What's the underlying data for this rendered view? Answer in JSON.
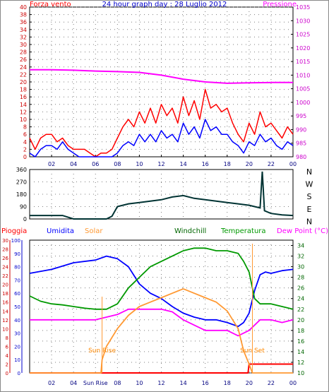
{
  "title": "24 hour graph day : 28 Luglio 2012",
  "colors": {
    "wind": "#ff0000",
    "pressure": "#ff00ff",
    "gust": "#0000ff",
    "direction": "#003333",
    "rain": "#ff0000",
    "humidity": "#0000ff",
    "solar": "#ff9933",
    "windchill": "#006600",
    "temperature": "#009900",
    "dewpoint": "#ff00ff",
    "grid": "#7f7f7f"
  },
  "chart_data": [
    {
      "type": "line",
      "panel": "wind-pressure",
      "title": "24 hour graph day : 28 Luglio 2012",
      "left_axis_label": "Forza vento",
      "right_axis_label": "Pressione",
      "left_ticks": [
        "0",
        "2",
        "4",
        "6",
        "8",
        "10",
        "12",
        "14",
        "16",
        "18",
        "20",
        "22",
        "24",
        "26",
        "28",
        "30",
        "32",
        "34",
        "36",
        "38",
        "40"
      ],
      "right_ticks": [
        "980",
        "985",
        "990",
        "995",
        "1000",
        "1005",
        "1010",
        "1015",
        "1020",
        "1025",
        "1030",
        "1035"
      ],
      "x_ticks": [
        "02",
        "04",
        "06",
        "08",
        "10",
        "12",
        "14",
        "16",
        "18",
        "20",
        "22",
        "00"
      ],
      "ylim_left": [
        0,
        40
      ],
      "ylim_right": [
        980,
        1035
      ],
      "series": [
        {
          "key": "pressure",
          "axis": "right",
          "x": [
            0,
            2,
            4,
            6,
            8,
            10,
            12,
            14,
            16,
            18,
            20,
            22,
            24
          ],
          "values": [
            1012,
            1012,
            1011.8,
            1011.5,
            1011.3,
            1011,
            1010,
            1008.5,
            1007.5,
            1007,
            1007.2,
            1007.3,
            1007.3
          ]
        },
        {
          "key": "wind",
          "axis": "left",
          "x": [
            0,
            0.5,
            1,
            1.5,
            2,
            2.5,
            3,
            3.5,
            4,
            4.5,
            5,
            5.5,
            6,
            6.5,
            7,
            7.5,
            8,
            8.5,
            9,
            9.5,
            10,
            10.5,
            11,
            11.5,
            12,
            12.5,
            13,
            13.5,
            14,
            14.5,
            15,
            15.5,
            16,
            16.5,
            17,
            17.5,
            18,
            18.5,
            19,
            19.5,
            20,
            20.5,
            21,
            21.5,
            22,
            22.5,
            23,
            23.5,
            24
          ],
          "values": [
            5,
            2,
            5,
            6,
            6,
            4,
            5,
            3,
            2,
            2,
            2,
            1,
            0,
            1,
            1,
            2,
            5,
            8,
            10,
            8,
            12,
            9,
            13,
            9,
            14,
            11,
            13,
            9,
            16,
            11,
            15,
            10,
            18,
            13,
            14,
            12,
            13,
            9,
            6,
            4,
            9,
            6,
            12,
            8,
            9,
            7,
            5,
            8,
            6
          ]
        },
        {
          "key": "gust",
          "axis": "left",
          "x": [
            0,
            0.5,
            1,
            1.5,
            2,
            2.5,
            3,
            3.5,
            4,
            4.5,
            5,
            5.5,
            6,
            6.5,
            7,
            7.5,
            8,
            8.5,
            9,
            9.5,
            10,
            10.5,
            11,
            11.5,
            12,
            12.5,
            13,
            13.5,
            14,
            14.5,
            15,
            15.5,
            16,
            16.5,
            17,
            17.5,
            18,
            18.5,
            19,
            19.5,
            20,
            20.5,
            21,
            21.5,
            22,
            22.5,
            23,
            23.5,
            24
          ],
          "values": [
            1,
            0,
            2,
            3,
            3,
            2,
            4,
            2,
            1,
            0,
            0,
            0,
            0,
            0,
            0,
            0,
            1,
            3,
            4,
            3,
            6,
            4,
            6,
            4,
            7,
            5,
            6,
            4,
            9,
            6,
            8,
            5,
            10,
            7,
            8,
            6,
            6,
            4,
            3,
            1,
            4,
            3,
            6,
            4,
            5,
            3,
            2,
            4,
            3
          ]
        }
      ]
    },
    {
      "type": "line",
      "panel": "wind-direction",
      "right_axis_label": "N W S E N",
      "left_ticks": [
        "0",
        "90",
        "180",
        "270",
        "360"
      ],
      "direction_labels": [
        "N",
        "W",
        "S",
        "E",
        "N"
      ],
      "ylim": [
        0,
        360
      ],
      "series": [
        {
          "key": "direction",
          "x": [
            0,
            1,
            2,
            3,
            4,
            5,
            6,
            7,
            7.5,
            8,
            9,
            10,
            11,
            12,
            13,
            14,
            15,
            16,
            17,
            18,
            19,
            20,
            20.5,
            21,
            21.2,
            21.4,
            22,
            23,
            24
          ],
          "values": [
            25,
            25,
            25,
            25,
            0,
            0,
            0,
            0,
            20,
            90,
            110,
            120,
            130,
            140,
            160,
            170,
            150,
            140,
            130,
            120,
            110,
            100,
            90,
            80,
            345,
            60,
            40,
            30,
            25
          ]
        }
      ]
    },
    {
      "type": "line",
      "panel": "temperature-humidity",
      "legend": [
        "Pioggia",
        "Umidita",
        "Solar",
        "Windchill",
        "Temperatura",
        "Dew Point (°C)"
      ],
      "annotations": [
        "Sun Rise",
        "Sun Set"
      ],
      "x_ticks": [
        "02",
        "04",
        "Sun Rise",
        "08",
        "10",
        "12",
        "14",
        "16",
        "18",
        "20",
        "22",
        "00"
      ],
      "rain_ticks": [
        "0",
        "2",
        "4",
        "6",
        "8",
        "10",
        "12",
        "14",
        "16",
        "18",
        "20",
        "22",
        "24",
        "26",
        "28",
        "30"
      ],
      "humidity_ticks": [
        "0",
        "10",
        "20",
        "30",
        "40",
        "50",
        "60",
        "70",
        "80",
        "90",
        "100"
      ],
      "temp_ticks": [
        "10",
        "12",
        "14",
        "16",
        "18",
        "20",
        "22",
        "24",
        "26",
        "28",
        "30",
        "32",
        "34"
      ],
      "ylim_temp": [
        10,
        35
      ],
      "ylim_humidity": [
        0,
        100
      ],
      "series": [
        {
          "key": "humidity",
          "axis": "humidity",
          "x": [
            0,
            2,
            4,
            6,
            7,
            8,
            9,
            10,
            11,
            12,
            13,
            14,
            15,
            16,
            17,
            18,
            19,
            19.5,
            20,
            20.5,
            21,
            21.5,
            22,
            23,
            24
          ],
          "values": [
            75,
            78,
            83,
            85,
            88,
            86,
            80,
            67,
            60,
            56,
            50,
            45,
            42,
            40,
            40,
            38,
            35,
            38,
            45,
            62,
            74,
            76,
            75,
            77,
            78
          ]
        },
        {
          "key": "temperature",
          "axis": "temp",
          "x": [
            0,
            1,
            2,
            3,
            4,
            5,
            6,
            7,
            8,
            9,
            10,
            11,
            12,
            13,
            14,
            15,
            16,
            17,
            18,
            19,
            19.5,
            20,
            20.5,
            21,
            22,
            23,
            24
          ],
          "values": [
            24.5,
            23.5,
            23,
            22.8,
            22.5,
            22.2,
            22,
            22,
            23,
            26,
            28,
            30,
            31,
            32,
            33,
            33.5,
            33.5,
            33,
            33,
            32.5,
            31,
            29,
            24,
            23,
            23,
            22.5,
            22
          ]
        },
        {
          "key": "dewpoint",
          "axis": "temp",
          "x": [
            0,
            2,
            4,
            5,
            6,
            7,
            8,
            9,
            10,
            11,
            12,
            13,
            14,
            15,
            16,
            17,
            18,
            19,
            20,
            21,
            22,
            23,
            24
          ],
          "values": [
            20,
            20,
            20,
            20,
            20,
            20.5,
            21,
            22,
            22,
            22,
            22,
            21.5,
            20,
            19,
            18,
            18,
            18,
            17,
            18,
            20,
            20,
            19.5,
            20
          ]
        },
        {
          "key": "rain",
          "axis": "rain",
          "x": [
            0,
            19.9,
            20,
            24
          ],
          "values": [
            0,
            0,
            2,
            2
          ]
        },
        {
          "key": "solar",
          "axis": "solar",
          "x": [
            0,
            6.5,
            6.6,
            7,
            8,
            9,
            10,
            11,
            12,
            13,
            14,
            15,
            16,
            17,
            18,
            19,
            19.5,
            20,
            20.3,
            24
          ],
          "values": [
            0,
            0,
            3,
            6,
            10,
            13,
            15,
            16,
            17,
            18,
            19,
            18,
            17,
            16,
            14,
            10,
            5,
            2,
            0,
            0
          ]
        }
      ]
    }
  ]
}
